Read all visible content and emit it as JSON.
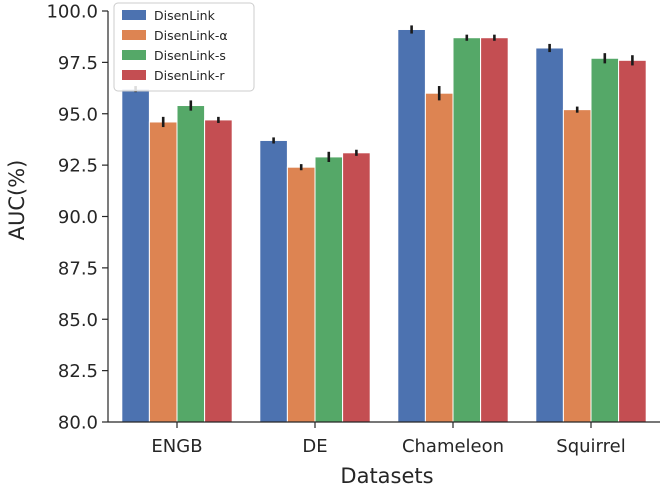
{
  "chart_data": {
    "type": "bar",
    "title": "",
    "xlabel": "Datasets",
    "ylabel": "AUC(%)",
    "ylim": [
      80.0,
      100.0
    ],
    "yticks": [
      "80.0",
      "82.5",
      "85.0",
      "87.5",
      "90.0",
      "92.5",
      "95.0",
      "97.5",
      "100.0"
    ],
    "categories": [
      "ENGB",
      "DE",
      "Chameleon",
      "Squirrel"
    ],
    "legend_position": "top-left",
    "grid": false,
    "series": [
      {
        "name": "DisenLink",
        "color": "#4c72b0",
        "values": [
          96.2,
          93.7,
          99.1,
          98.2
        ],
        "errors": [
          0.1,
          0.1,
          0.15,
          0.15
        ]
      },
      {
        "name": "DisenLink-α",
        "color": "#dd8452",
        "values": [
          94.6,
          92.4,
          96.0,
          95.2
        ],
        "errors": [
          0.2,
          0.1,
          0.3,
          0.1
        ]
      },
      {
        "name": "DisenLink-s",
        "color": "#55a868",
        "values": [
          95.4,
          92.9,
          98.7,
          97.7
        ],
        "errors": [
          0.2,
          0.2,
          0.1,
          0.2
        ]
      },
      {
        "name": "DisenLink-r",
        "color": "#c44e52",
        "values": [
          94.7,
          93.1,
          98.7,
          97.6
        ],
        "errors": [
          0.1,
          0.1,
          0.1,
          0.2
        ]
      }
    ]
  }
}
